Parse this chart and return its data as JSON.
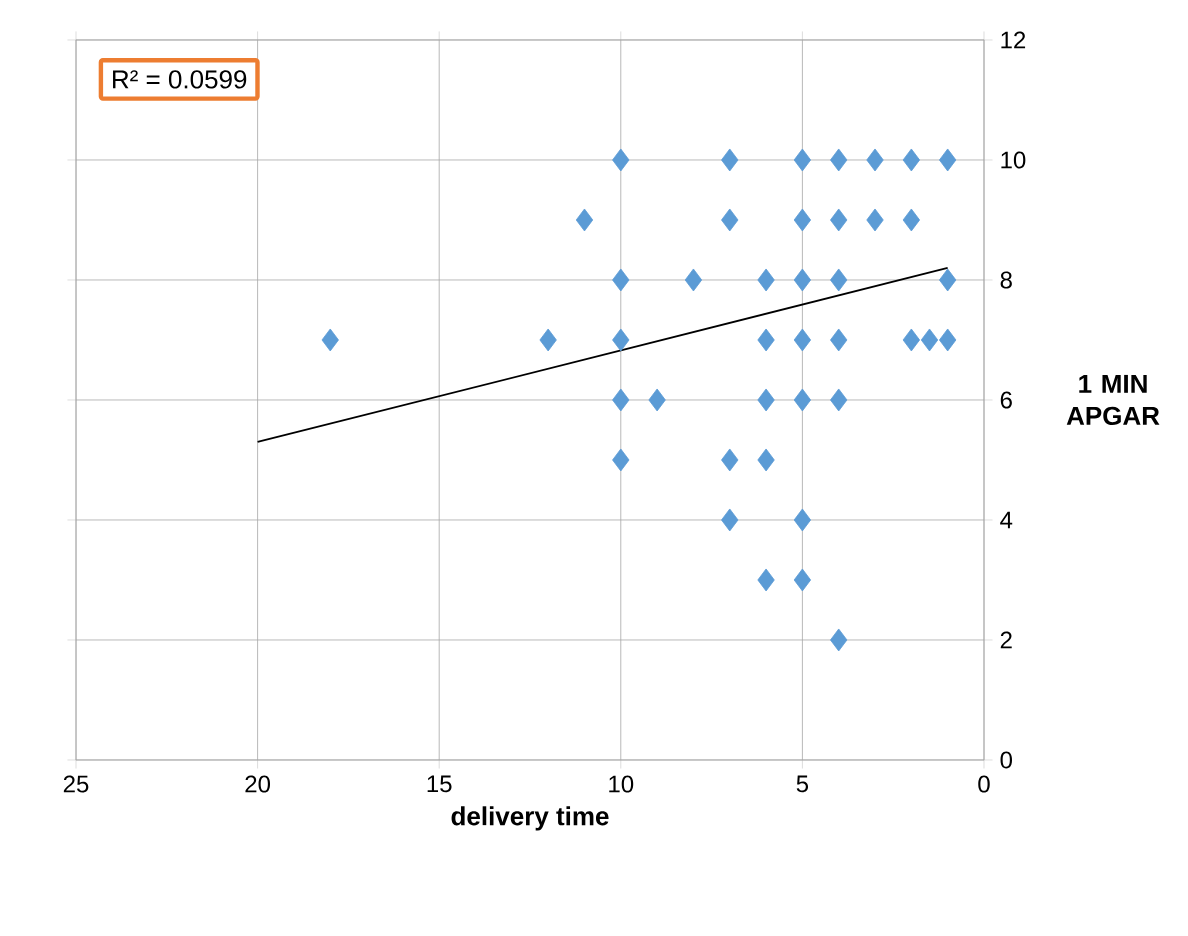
{
  "chart_data": {
    "type": "scatter",
    "xlabel": "delivery time",
    "ylabel": "1 MIN APGAR",
    "annotations": [
      "R² = 0.0599"
    ],
    "xlim": [
      25,
      0
    ],
    "xticks": [
      25,
      20,
      15,
      10,
      5,
      0
    ],
    "ylim": [
      0,
      12
    ],
    "yticks": [
      0,
      2,
      4,
      6,
      8,
      10,
      12
    ],
    "grid": true,
    "marker": "diamond",
    "series": [
      {
        "color": "#5b9bd5",
        "x": [
          10,
          7,
          5,
          4,
          3,
          2,
          1,
          11,
          7,
          5,
          4,
          3,
          2,
          10,
          8,
          6,
          5,
          4,
          1,
          18,
          12,
          10,
          6,
          5,
          4,
          2,
          1.5,
          1,
          10,
          9,
          6,
          5,
          4,
          10,
          7,
          6,
          7,
          5,
          6,
          5,
          4
        ],
        "values": [
          10,
          10,
          10,
          10,
          10,
          10,
          10,
          9,
          9,
          9,
          9,
          9,
          9,
          8,
          8,
          8,
          8,
          8,
          8,
          7,
          7,
          7,
          7,
          7,
          7,
          7,
          7,
          7,
          6,
          6,
          6,
          6,
          6,
          5,
          5,
          5,
          4,
          4,
          3,
          3,
          2
        ]
      },
      {
        "type": "line",
        "marker": "none",
        "color": "#000000",
        "x": [
          20,
          1
        ],
        "values": [
          5.3,
          8.2
        ]
      }
    ]
  }
}
